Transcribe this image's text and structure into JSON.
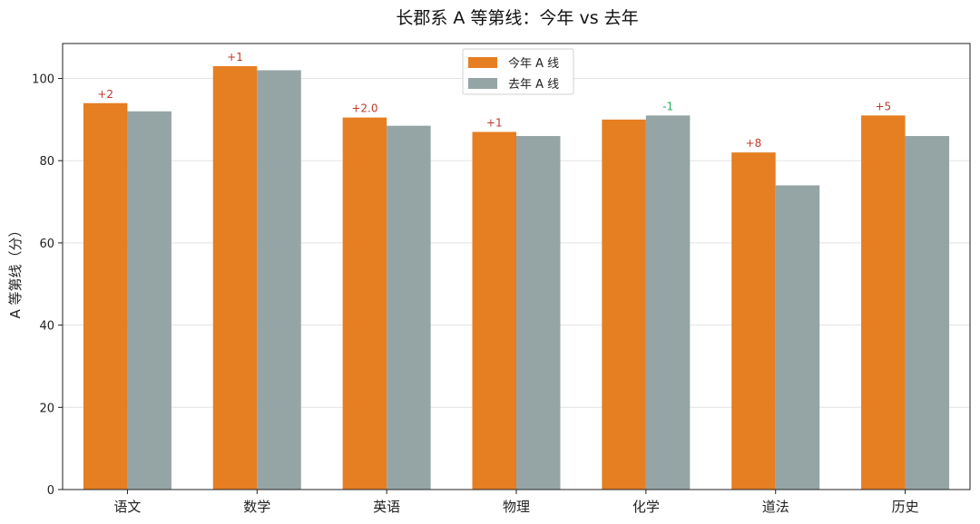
{
  "chart_data": {
    "type": "bar",
    "title": "长郡系 A 等第线：今年 vs 去年",
    "xlabel": "",
    "ylabel": "A 等第线（分）",
    "categories": [
      "语文",
      "数学",
      "英语",
      "物理",
      "化学",
      "道法",
      "历史"
    ],
    "series": [
      {
        "name": "今年 A 线",
        "values": [
          94,
          103,
          90.5,
          87,
          90,
          82,
          91
        ],
        "color": "#e67e22"
      },
      {
        "name": "去年 A 线",
        "values": [
          92,
          102,
          88.5,
          86,
          91,
          74,
          86
        ],
        "color": "#95a5a6"
      }
    ],
    "annotations": [
      "+2",
      "+1",
      "+2.0",
      "+1",
      "-1",
      "+8",
      "+5"
    ],
    "annotation_colors": {
      "positive": "#c0392b",
      "negative": "#27ae60"
    },
    "ylim": [
      0,
      108.5
    ],
    "yticks": [
      0,
      20,
      40,
      60,
      80,
      100
    ],
    "grid": "horizontal",
    "legend_position": "top-center"
  }
}
